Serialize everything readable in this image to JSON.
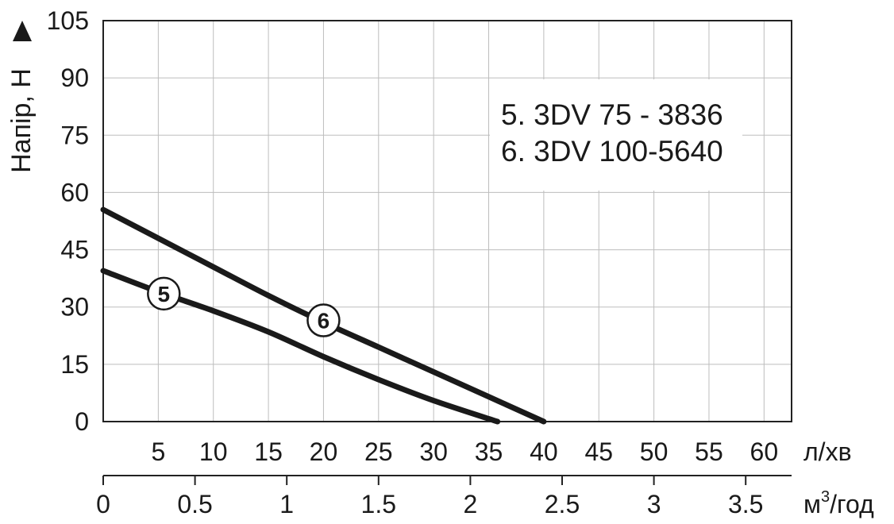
{
  "chart_data": {
    "type": "line",
    "y_axis": {
      "label": "Напір, Н",
      "ylim": [
        0,
        105
      ],
      "ticks": [
        0,
        15,
        30,
        45,
        60,
        75,
        90,
        105
      ],
      "arrow_icon": "up-triangle-icon"
    },
    "x_axis_primary": {
      "unit_label": "л/хв",
      "xlim": [
        0,
        62.5
      ],
      "ticks": [
        5,
        10,
        15,
        20,
        25,
        30,
        35,
        40,
        45,
        50,
        55,
        60
      ]
    },
    "x_axis_secondary": {
      "unit_label": "м³/год",
      "xlim": [
        0,
        3.75
      ],
      "ticks": [
        "0",
        "0.5",
        "1",
        "1.5",
        "2",
        "2.5",
        "3",
        "3.5"
      ]
    },
    "grid": true,
    "legend": {
      "position": "top-right",
      "entries": [
        "5. 3DV 75 - 3836",
        "6. 3DV 100-5640"
      ]
    },
    "series": [
      {
        "marker": "5",
        "x": [
          0,
          5,
          10,
          15,
          20,
          25,
          30,
          35.8
        ],
        "y": [
          39.5,
          34.0,
          29.0,
          23.5,
          17.0,
          11.0,
          5.5,
          0
        ]
      },
      {
        "marker": "6",
        "x": [
          0,
          5,
          10,
          15,
          20,
          25,
          30,
          35,
          40
        ],
        "y": [
          55.5,
          48.0,
          40.5,
          33.0,
          26.0,
          19.5,
          13.0,
          6.5,
          0
        ]
      }
    ],
    "marker_positions": [
      {
        "series": "5",
        "x": 5.5,
        "y": 33.5
      },
      {
        "series": "6",
        "x": 20.0,
        "y": 26.5
      }
    ]
  }
}
